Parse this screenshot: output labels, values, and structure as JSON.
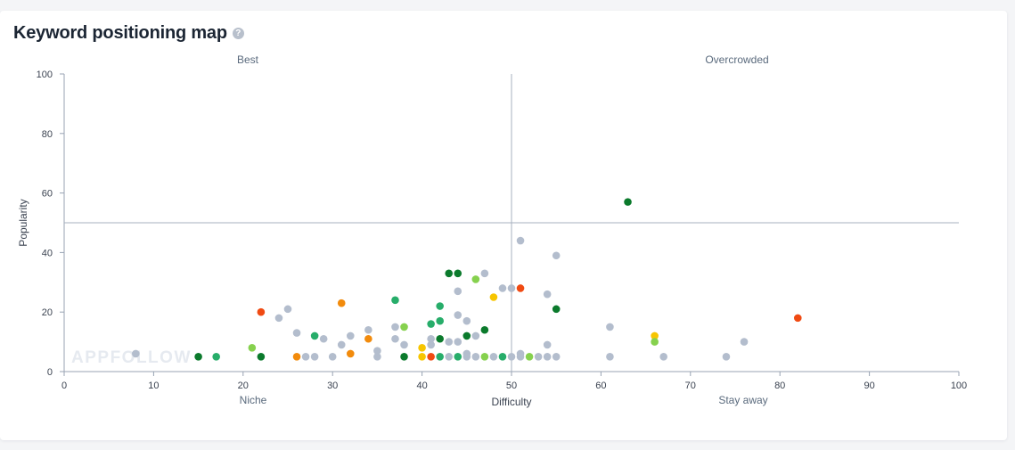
{
  "header": {
    "title": "Keyword positioning map",
    "help_icon": "help-icon"
  },
  "watermark": "APPFOLLOW",
  "colors": {
    "gray": "#b3bdcd",
    "dark_green": "#0b7a2c",
    "green": "#27ad6a",
    "light_green": "#86d14e",
    "yellow": "#f7c500",
    "orange": "#f28b0c",
    "red": "#f04a12"
  },
  "chart_data": {
    "type": "scatter",
    "title": "Keyword positioning map",
    "xlabel": "Difficulty",
    "ylabel": "Popularity",
    "xlim": [
      0,
      100
    ],
    "ylim": [
      0,
      100
    ],
    "xticks": [
      0,
      10,
      20,
      30,
      40,
      50,
      60,
      70,
      80,
      90,
      100
    ],
    "yticks": [
      0,
      20,
      40,
      60,
      80,
      100
    ],
    "grid": false,
    "divider_x": 50,
    "divider_y": 50,
    "quadrant_labels": {
      "top_left": "Best",
      "top_right": "Overcrowded",
      "bottom_left": "Niche",
      "bottom_right": "Stay away"
    },
    "points": [
      {
        "x": 8,
        "y": 6,
        "c": "gray"
      },
      {
        "x": 15,
        "y": 5,
        "c": "dark_green"
      },
      {
        "x": 17,
        "y": 5,
        "c": "green"
      },
      {
        "x": 21,
        "y": 8,
        "c": "light_green"
      },
      {
        "x": 22,
        "y": 20,
        "c": "red"
      },
      {
        "x": 22,
        "y": 5,
        "c": "dark_green"
      },
      {
        "x": 24,
        "y": 18,
        "c": "gray"
      },
      {
        "x": 25,
        "y": 21,
        "c": "gray"
      },
      {
        "x": 26,
        "y": 13,
        "c": "gray"
      },
      {
        "x": 26,
        "y": 5,
        "c": "orange"
      },
      {
        "x": 27,
        "y": 5,
        "c": "gray"
      },
      {
        "x": 28,
        "y": 12,
        "c": "green"
      },
      {
        "x": 28,
        "y": 5,
        "c": "gray"
      },
      {
        "x": 29,
        "y": 11,
        "c": "gray"
      },
      {
        "x": 30,
        "y": 5,
        "c": "gray"
      },
      {
        "x": 31,
        "y": 23,
        "c": "orange"
      },
      {
        "x": 31,
        "y": 9,
        "c": "gray"
      },
      {
        "x": 32,
        "y": 12,
        "c": "gray"
      },
      {
        "x": 32,
        "y": 6,
        "c": "orange"
      },
      {
        "x": 34,
        "y": 14,
        "c": "gray"
      },
      {
        "x": 34,
        "y": 11,
        "c": "orange"
      },
      {
        "x": 35,
        "y": 7,
        "c": "gray"
      },
      {
        "x": 35,
        "y": 5,
        "c": "gray"
      },
      {
        "x": 37,
        "y": 24,
        "c": "green"
      },
      {
        "x": 37,
        "y": 15,
        "c": "gray"
      },
      {
        "x": 37,
        "y": 11,
        "c": "gray"
      },
      {
        "x": 38,
        "y": 15,
        "c": "light_green"
      },
      {
        "x": 38,
        "y": 9,
        "c": "gray"
      },
      {
        "x": 38,
        "y": 5,
        "c": "dark_green"
      },
      {
        "x": 40,
        "y": 8,
        "c": "yellow"
      },
      {
        "x": 40,
        "y": 5,
        "c": "yellow"
      },
      {
        "x": 41,
        "y": 16,
        "c": "green"
      },
      {
        "x": 41,
        "y": 11,
        "c": "gray"
      },
      {
        "x": 41,
        "y": 9,
        "c": "gray"
      },
      {
        "x": 41,
        "y": 5,
        "c": "red"
      },
      {
        "x": 42,
        "y": 22,
        "c": "green"
      },
      {
        "x": 42,
        "y": 17,
        "c": "green"
      },
      {
        "x": 42,
        "y": 11,
        "c": "dark_green"
      },
      {
        "x": 42,
        "y": 5,
        "c": "green"
      },
      {
        "x": 43,
        "y": 33,
        "c": "dark_green"
      },
      {
        "x": 43,
        "y": 10,
        "c": "gray"
      },
      {
        "x": 43,
        "y": 5,
        "c": "gray"
      },
      {
        "x": 44,
        "y": 33,
        "c": "dark_green"
      },
      {
        "x": 44,
        "y": 27,
        "c": "gray"
      },
      {
        "x": 44,
        "y": 19,
        "c": "gray"
      },
      {
        "x": 44,
        "y": 10,
        "c": "gray"
      },
      {
        "x": 44,
        "y": 5,
        "c": "green"
      },
      {
        "x": 45,
        "y": 17,
        "c": "gray"
      },
      {
        "x": 45,
        "y": 12,
        "c": "dark_green"
      },
      {
        "x": 45,
        "y": 6,
        "c": "gray"
      },
      {
        "x": 45,
        "y": 5,
        "c": "gray"
      },
      {
        "x": 46,
        "y": 31,
        "c": "light_green"
      },
      {
        "x": 46,
        "y": 12,
        "c": "gray"
      },
      {
        "x": 46,
        "y": 5,
        "c": "gray"
      },
      {
        "x": 47,
        "y": 33,
        "c": "gray"
      },
      {
        "x": 47,
        "y": 14,
        "c": "dark_green"
      },
      {
        "x": 47,
        "y": 5,
        "c": "light_green"
      },
      {
        "x": 48,
        "y": 25,
        "c": "yellow"
      },
      {
        "x": 48,
        "y": 5,
        "c": "gray"
      },
      {
        "x": 49,
        "y": 28,
        "c": "gray"
      },
      {
        "x": 49,
        "y": 5,
        "c": "green"
      },
      {
        "x": 50,
        "y": 28,
        "c": "gray"
      },
      {
        "x": 50,
        "y": 5,
        "c": "gray"
      },
      {
        "x": 51,
        "y": 44,
        "c": "gray"
      },
      {
        "x": 51,
        "y": 28,
        "c": "red"
      },
      {
        "x": 51,
        "y": 6,
        "c": "gray"
      },
      {
        "x": 51,
        "y": 5,
        "c": "gray"
      },
      {
        "x": 52,
        "y": 5,
        "c": "light_green"
      },
      {
        "x": 53,
        "y": 5,
        "c": "gray"
      },
      {
        "x": 54,
        "y": 26,
        "c": "gray"
      },
      {
        "x": 54,
        "y": 9,
        "c": "gray"
      },
      {
        "x": 54,
        "y": 5,
        "c": "gray"
      },
      {
        "x": 55,
        "y": 39,
        "c": "gray"
      },
      {
        "x": 55,
        "y": 21,
        "c": "dark_green"
      },
      {
        "x": 55,
        "y": 5,
        "c": "gray"
      },
      {
        "x": 61,
        "y": 15,
        "c": "gray"
      },
      {
        "x": 61,
        "y": 5,
        "c": "gray"
      },
      {
        "x": 63,
        "y": 57,
        "c": "dark_green"
      },
      {
        "x": 66,
        "y": 12,
        "c": "yellow"
      },
      {
        "x": 66,
        "y": 10,
        "c": "light_green"
      },
      {
        "x": 67,
        "y": 5,
        "c": "gray"
      },
      {
        "x": 74,
        "y": 5,
        "c": "gray"
      },
      {
        "x": 76,
        "y": 10,
        "c": "gray"
      },
      {
        "x": 82,
        "y": 18,
        "c": "red"
      }
    ]
  }
}
